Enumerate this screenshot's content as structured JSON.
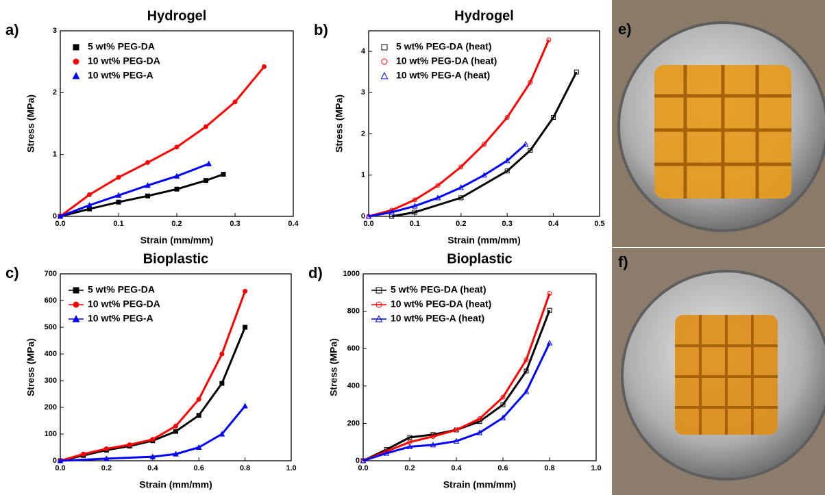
{
  "chart_data": [
    {
      "type": "line",
      "label": "a)",
      "title": "Hydrogel",
      "x_label": "Strain (mm/mm)",
      "y_label": "Stress (MPa)",
      "xlim": [
        0,
        0.4
      ],
      "xticks": [
        {
          "value": 0,
          "label": "0.0"
        },
        0.1,
        0.2,
        0.3,
        0.4
      ],
      "ylim": [
        0,
        3
      ],
      "yticks": [
        0,
        1,
        2,
        3
      ],
      "legend": "upper left",
      "filled": true,
      "series": [
        {
          "name": "5 wt% PEG-DA",
          "color": "#000000",
          "marker": "square",
          "x": [
            0,
            0.05,
            0.1,
            0.15,
            0.2,
            0.25,
            0.28
          ],
          "values": [
            0,
            0.12,
            0.23,
            0.33,
            0.44,
            0.58,
            0.68
          ]
        },
        {
          "name": "10 wt% PEG-DA",
          "color": "#ff0000",
          "marker": "circle",
          "x": [
            0,
            0.05,
            0.1,
            0.15,
            0.2,
            0.25,
            0.3,
            0.35
          ],
          "values": [
            0,
            0.35,
            0.63,
            0.87,
            1.12,
            1.45,
            1.85,
            2.42
          ]
        },
        {
          "name": "10 wt% PEG-A",
          "color": "#0000ff",
          "marker": "triangle",
          "x": [
            0,
            0.05,
            0.1,
            0.15,
            0.2,
            0.255
          ],
          "values": [
            0,
            0.18,
            0.34,
            0.5,
            0.65,
            0.85
          ]
        }
      ]
    },
    {
      "type": "line",
      "label": "b)",
      "title": "Hydrogel",
      "x_label": "Strain (mm/mm)",
      "y_label": "Stress (MPa)",
      "xlim": [
        0,
        0.5
      ],
      "xticks": [
        {
          "value": 0,
          "label": "0.0"
        },
        0.1,
        0.2,
        0.3,
        0.4,
        0.5
      ],
      "ylim": [
        0,
        4.5
      ],
      "yticks": [
        0,
        1,
        2,
        3,
        4
      ],
      "legend": "upper left",
      "filled": false,
      "series": [
        {
          "name": "5 wt% PEG-DA (heat)",
          "color": "#000000",
          "marker": "square",
          "x": [
            0.05,
            0.1,
            0.2,
            0.3,
            0.35,
            0.4,
            0.45
          ],
          "values": [
            0,
            0.1,
            0.45,
            1.1,
            1.6,
            2.4,
            3.5
          ]
        },
        {
          "name": "10 wt% PEG-DA (heat)",
          "color": "#ff0000",
          "marker": "circle",
          "x": [
            0,
            0.05,
            0.1,
            0.15,
            0.2,
            0.25,
            0.3,
            0.35,
            0.39
          ],
          "values": [
            0,
            0.15,
            0.4,
            0.75,
            1.2,
            1.75,
            2.4,
            3.25,
            4.28
          ]
        },
        {
          "name": "10 wt% PEG-A (heat)",
          "color": "#0000ff",
          "marker": "triangle",
          "x": [
            0,
            0.05,
            0.1,
            0.15,
            0.2,
            0.25,
            0.3,
            0.34
          ],
          "values": [
            0,
            0.1,
            0.25,
            0.45,
            0.7,
            1.0,
            1.35,
            1.75
          ]
        }
      ]
    },
    {
      "type": "line",
      "label": "c)",
      "title": "Bioplastic",
      "x_label": "Strain (mm/mm)",
      "y_label": "Stress (MPa)",
      "xlim": [
        0,
        1
      ],
      "xticks": [
        {
          "value": 0,
          "label": "0.0"
        },
        0.2,
        0.4,
        0.6,
        0.8,
        {
          "value": 1,
          "label": "1.0"
        }
      ],
      "ylim": [
        0,
        700
      ],
      "yticks": [
        0,
        100,
        200,
        300,
        400,
        500,
        600,
        700
      ],
      "legend": "upper left",
      "filled": true,
      "series": [
        {
          "name": "5 wt% PEG-DA",
          "color": "#000000",
          "marker": "square",
          "x": [
            0,
            0.1,
            0.2,
            0.3,
            0.4,
            0.5,
            0.6,
            0.7,
            0.8
          ],
          "values": [
            0,
            20,
            40,
            55,
            75,
            110,
            170,
            290,
            500
          ]
        },
        {
          "name": "10 wt% PEG-DA",
          "color": "#ff0000",
          "marker": "circle",
          "x": [
            0,
            0.1,
            0.2,
            0.3,
            0.4,
            0.5,
            0.6,
            0.7,
            0.8
          ],
          "values": [
            0,
            25,
            45,
            60,
            80,
            130,
            230,
            400,
            635
          ]
        },
        {
          "name": "10 wt% PEG-A",
          "color": "#0000ff",
          "marker": "triangle",
          "x": [
            0,
            0.2,
            0.4,
            0.5,
            0.6,
            0.7,
            0.8
          ],
          "values": [
            0,
            8,
            15,
            25,
            50,
            100,
            205
          ]
        }
      ]
    },
    {
      "type": "line",
      "label": "d)",
      "title": "Bioplastic",
      "x_label": "Strain (mm/mm)",
      "y_label": "Stress (MPa)",
      "xlim": [
        0,
        1
      ],
      "xticks": [
        {
          "value": 0,
          "label": "0.0"
        },
        0.2,
        0.4,
        0.6,
        0.8,
        {
          "value": 1,
          "label": "1.0"
        }
      ],
      "ylim": [
        0,
        1000
      ],
      "yticks": [
        0,
        200,
        400,
        600,
        800,
        1000
      ],
      "legend": "upper left",
      "filled": false,
      "series": [
        {
          "name": "5 wt% PEG-DA (heat)",
          "color": "#000000",
          "marker": "square",
          "x": [
            0,
            0.1,
            0.2,
            0.3,
            0.4,
            0.5,
            0.6,
            0.7,
            0.8
          ],
          "values": [
            0,
            60,
            125,
            140,
            165,
            210,
            300,
            480,
            805
          ]
        },
        {
          "name": "10 wt% PEG-DA (heat)",
          "color": "#ff0000",
          "marker": "circle",
          "x": [
            0,
            0.1,
            0.2,
            0.3,
            0.4,
            0.5,
            0.6,
            0.7,
            0.8
          ],
          "values": [
            0,
            50,
            100,
            130,
            165,
            225,
            340,
            540,
            895
          ]
        },
        {
          "name": "10 wt% PEG-A (heat)",
          "color": "#0000ff",
          "marker": "triangle",
          "x": [
            0,
            0.1,
            0.2,
            0.3,
            0.4,
            0.5,
            0.6,
            0.7,
            0.8
          ],
          "values": [
            0,
            40,
            75,
            85,
            105,
            150,
            230,
            370,
            630
          ]
        }
      ]
    }
  ],
  "photos": [
    {
      "label": "e)"
    },
    {
      "label": "f)"
    }
  ]
}
